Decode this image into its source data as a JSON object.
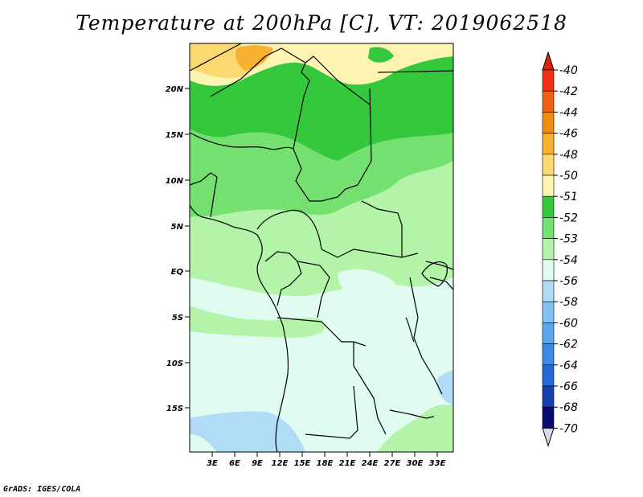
{
  "title": "Temperature at 200hPa [C], VT: 2019062518",
  "credit": "GrADS: IGES/COLA",
  "lat_labels": [
    "20N",
    "15N",
    "10N",
    "5N",
    "EQ",
    "5S",
    "10S",
    "15S"
  ],
  "lon_labels": [
    "3E",
    "6E",
    "9E",
    "12E",
    "15E",
    "18E",
    "21E",
    "24E",
    "27E",
    "30E",
    "33E"
  ],
  "colorbar": {
    "labels": [
      "-40",
      "-42",
      "-44",
      "-46",
      "-48",
      "-50",
      "-51",
      "-52",
      "-53",
      "-54",
      "-56",
      "-58",
      "-60",
      "-62",
      "-64",
      "-66",
      "-68",
      "-70"
    ],
    "colors": [
      "#f03010",
      "#f06010",
      "#f08c10",
      "#f8b030",
      "#fcd870",
      "#fcf4b0",
      "#36c83c",
      "#74e070",
      "#b4f4a8",
      "#e0fcf0",
      "#b0dcf8",
      "#84c2f4",
      "#5ca6ee",
      "#3c8ae8",
      "#2468dc",
      "#1440b0",
      "#080c70"
    ],
    "top_arrow_color": "#e02008",
    "bottom_arrow_color": "#d8d8f0"
  }
}
